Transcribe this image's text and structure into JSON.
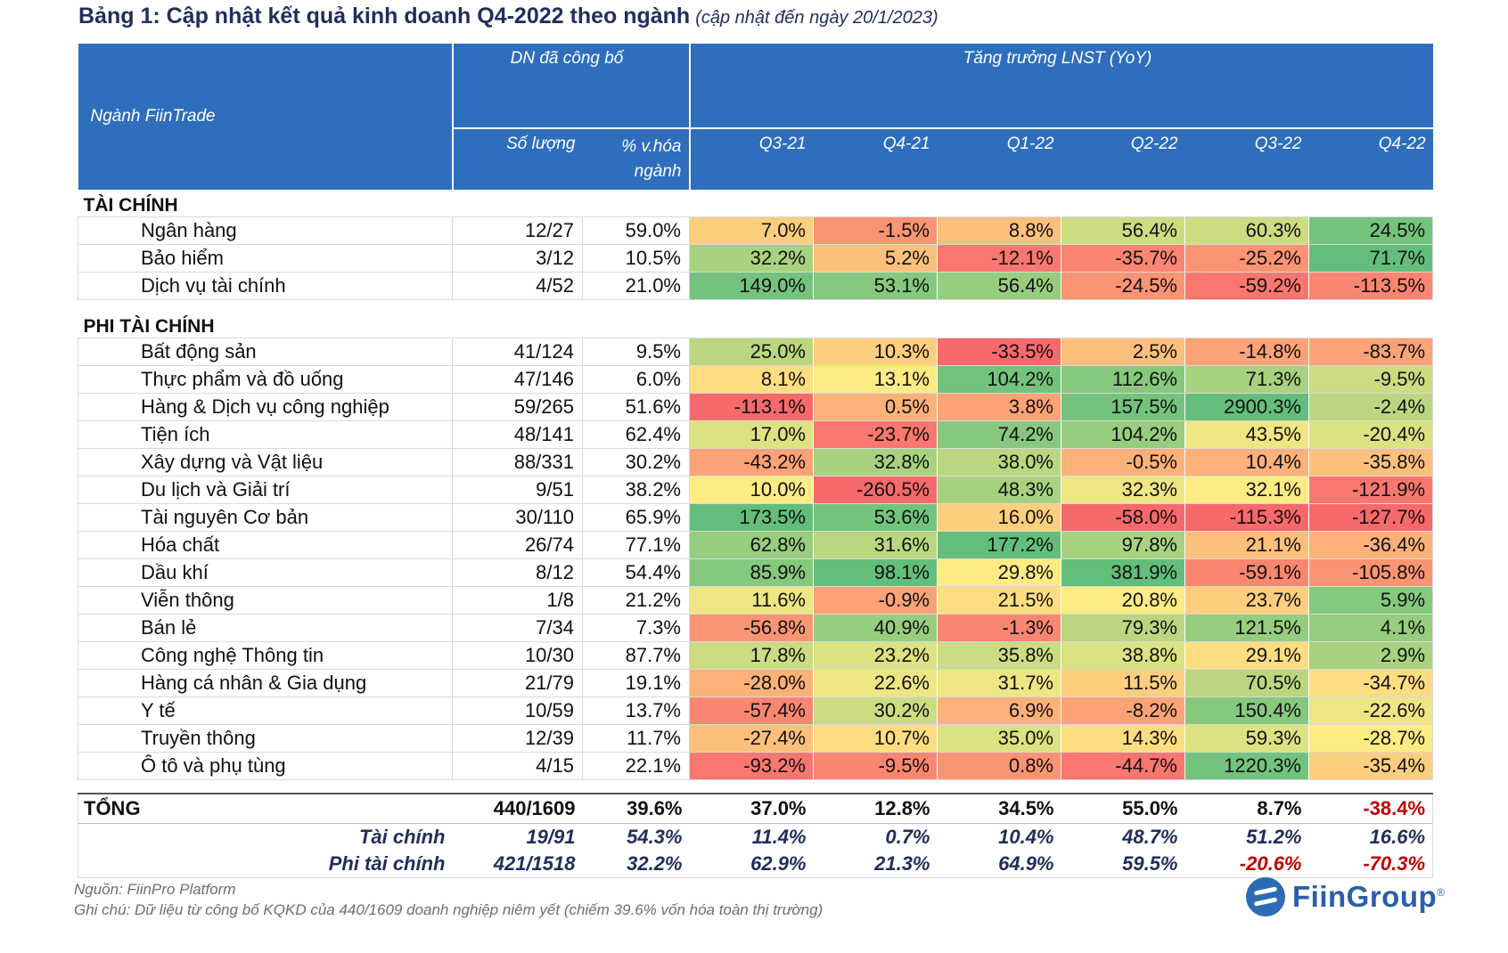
{
  "title": "Bảng 1: Cập nhật kết quả kinh doanh Q4-2022 theo ngành",
  "subtitle": "(cập nhật đến ngày 20/1/2023)",
  "header": {
    "sector": "Ngành FiinTrade",
    "dn_group": "DN đã công bố",
    "growth_group": "Tăng trưởng LNST (YoY)",
    "count": "Số lượng",
    "pct": "% v.hóa ngành",
    "quarters": [
      "Q3-21",
      "Q4-21",
      "Q1-22",
      "Q2-22",
      "Q3-22",
      "Q4-22"
    ]
  },
  "groups": [
    {
      "name": "TÀI CHÍNH",
      "rows": [
        {
          "name": "Ngân hàng",
          "count": "12/27",
          "pct": "59.0%",
          "g": [
            "7.0%",
            "-1.5%",
            "8.8%",
            "56.4%",
            "60.3%",
            "24.5%"
          ]
        },
        {
          "name": "Bảo hiểm",
          "count": "3/12",
          "pct": "10.5%",
          "g": [
            "32.2%",
            "5.2%",
            "-12.1%",
            "-35.7%",
            "-25.2%",
            "71.7%"
          ]
        },
        {
          "name": "Dịch vụ tài chính",
          "count": "4/52",
          "pct": "21.0%",
          "g": [
            "149.0%",
            "53.1%",
            "56.4%",
            "-24.5%",
            "-59.2%",
            "-113.5%"
          ]
        }
      ]
    },
    {
      "name": "PHI TÀI CHÍNH",
      "rows": [
        {
          "name": "Bất động sản",
          "count": "41/124",
          "pct": "9.5%",
          "g": [
            "25.0%",
            "10.3%",
            "-33.5%",
            "2.5%",
            "-14.8%",
            "-83.7%"
          ]
        },
        {
          "name": "Thực phẩm và đồ uống",
          "count": "47/146",
          "pct": "6.0%",
          "g": [
            "8.1%",
            "13.1%",
            "104.2%",
            "112.6%",
            "71.3%",
            "-9.5%"
          ]
        },
        {
          "name": "Hàng & Dịch vụ công nghiệp",
          "count": "59/265",
          "pct": "51.6%",
          "g": [
            "-113.1%",
            "0.5%",
            "3.8%",
            "157.5%",
            "2900.3%",
            "-2.4%"
          ]
        },
        {
          "name": "Tiện ích",
          "count": "48/141",
          "pct": "62.4%",
          "g": [
            "17.0%",
            "-23.7%",
            "74.2%",
            "104.2%",
            "43.5%",
            "-20.4%"
          ]
        },
        {
          "name": "Xây dựng và Vật liệu",
          "count": "88/331",
          "pct": "30.2%",
          "g": [
            "-43.2%",
            "32.8%",
            "38.0%",
            "-0.5%",
            "10.4%",
            "-35.8%"
          ]
        },
        {
          "name": "Du lịch và Giải trí",
          "count": "9/51",
          "pct": "38.2%",
          "g": [
            "10.0%",
            "-260.5%",
            "48.3%",
            "32.3%",
            "32.1%",
            "-121.9%"
          ]
        },
        {
          "name": "Tài nguyên Cơ bản",
          "count": "30/110",
          "pct": "65.9%",
          "g": [
            "173.5%",
            "53.6%",
            "16.0%",
            "-58.0%",
            "-115.3%",
            "-127.7%"
          ]
        },
        {
          "name": "Hóa chất",
          "count": "26/74",
          "pct": "77.1%",
          "g": [
            "62.8%",
            "31.6%",
            "177.2%",
            "97.8%",
            "21.1%",
            "-36.4%"
          ]
        },
        {
          "name": "Dầu khí",
          "count": "8/12",
          "pct": "54.4%",
          "g": [
            "85.9%",
            "98.1%",
            "29.8%",
            "381.9%",
            "-59.1%",
            "-105.8%"
          ]
        },
        {
          "name": "Viễn thông",
          "count": "1/8",
          "pct": "21.2%",
          "g": [
            "11.6%",
            "-0.9%",
            "21.5%",
            "20.8%",
            "23.7%",
            "5.9%"
          ]
        },
        {
          "name": "Bán lẻ",
          "count": "7/34",
          "pct": "7.3%",
          "g": [
            "-56.8%",
            "40.9%",
            "-1.3%",
            "79.3%",
            "121.5%",
            "4.1%"
          ]
        },
        {
          "name": "Công nghệ Thông tin",
          "count": "10/30",
          "pct": "87.7%",
          "g": [
            "17.8%",
            "23.2%",
            "35.8%",
            "38.8%",
            "29.1%",
            "2.9%"
          ]
        },
        {
          "name": "Hàng cá nhân & Gia dụng",
          "count": "21/79",
          "pct": "19.1%",
          "g": [
            "-28.0%",
            "22.6%",
            "31.7%",
            "11.5%",
            "70.5%",
            "-34.7%"
          ]
        },
        {
          "name": "Y tế",
          "count": "10/59",
          "pct": "13.7%",
          "g": [
            "-57.4%",
            "30.2%",
            "6.9%",
            "-8.2%",
            "150.4%",
            "-22.6%"
          ]
        },
        {
          "name": "Truyền thông",
          "count": "12/39",
          "pct": "11.7%",
          "g": [
            "-27.4%",
            "10.7%",
            "35.0%",
            "14.3%",
            "59.3%",
            "-28.7%"
          ]
        },
        {
          "name": "Ô tô và phụ tùng",
          "count": "4/15",
          "pct": "22.1%",
          "g": [
            "-93.2%",
            "-9.5%",
            "0.8%",
            "-44.7%",
            "1220.3%",
            "-35.4%"
          ]
        }
      ]
    }
  ],
  "total": {
    "name": "TỔNG",
    "count": "440/1609",
    "pct": "39.6%",
    "g": [
      "37.0%",
      "12.8%",
      "34.5%",
      "55.0%",
      "8.7%",
      "-38.4%"
    ]
  },
  "subtotals": [
    {
      "name": "Tài chính",
      "count": "19/91",
      "pct": "54.3%",
      "g": [
        "11.4%",
        "0.7%",
        "10.4%",
        "48.7%",
        "51.2%",
        "16.6%"
      ]
    },
    {
      "name": "Phi tài chính",
      "count": "421/1518",
      "pct": "32.2%",
      "g": [
        "62.9%",
        "21.3%",
        "64.9%",
        "59.5%",
        "-20.6%",
        "-70.3%"
      ]
    }
  ],
  "footer": {
    "source": "Nguồn: FiinPro Platform",
    "note": "Ghi chú: Dữ liệu từ công bố KQKD của 440/1609 doanh nghiệp niêm yết (chiếm 39.6% vốn hóa toàn thị trường)"
  },
  "logo": {
    "text": "FiinGroup",
    "mark": "®"
  },
  "colors": {
    "header_bg": "#2e6ebd",
    "green": "#63be7b",
    "yellow": "#ffeb84",
    "red": "#f8696b",
    "negative_text": "#c00000"
  }
}
